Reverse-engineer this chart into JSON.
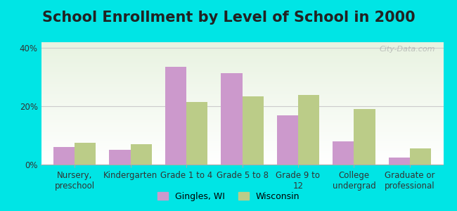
{
  "title": "School Enrollment by Level of School in 2000",
  "categories": [
    "Nursery,\npreschool",
    "Kindergarten",
    "Grade 1 to 4",
    "Grade 5 to 8",
    "Grade 9 to\n12",
    "College\nundergrad",
    "Graduate or\nprofessional"
  ],
  "gingles_values": [
    6.0,
    5.0,
    33.5,
    31.5,
    17.0,
    8.0,
    2.5
  ],
  "wisconsin_values": [
    7.5,
    7.0,
    21.5,
    23.5,
    24.0,
    19.0,
    5.5
  ],
  "gingles_color": "#cc99cc",
  "wisconsin_color": "#bbcc88",
  "background_outer": "#00e5e5",
  "ylim": [
    0,
    42
  ],
  "yticks": [
    0,
    20,
    40
  ],
  "ytick_labels": [
    "0%",
    "20%",
    "40%"
  ],
  "legend_labels": [
    "Gingles, WI",
    "Wisconsin"
  ],
  "watermark": "City-Data.com",
  "title_fontsize": 15,
  "label_fontsize": 8.5,
  "bar_width": 0.38
}
